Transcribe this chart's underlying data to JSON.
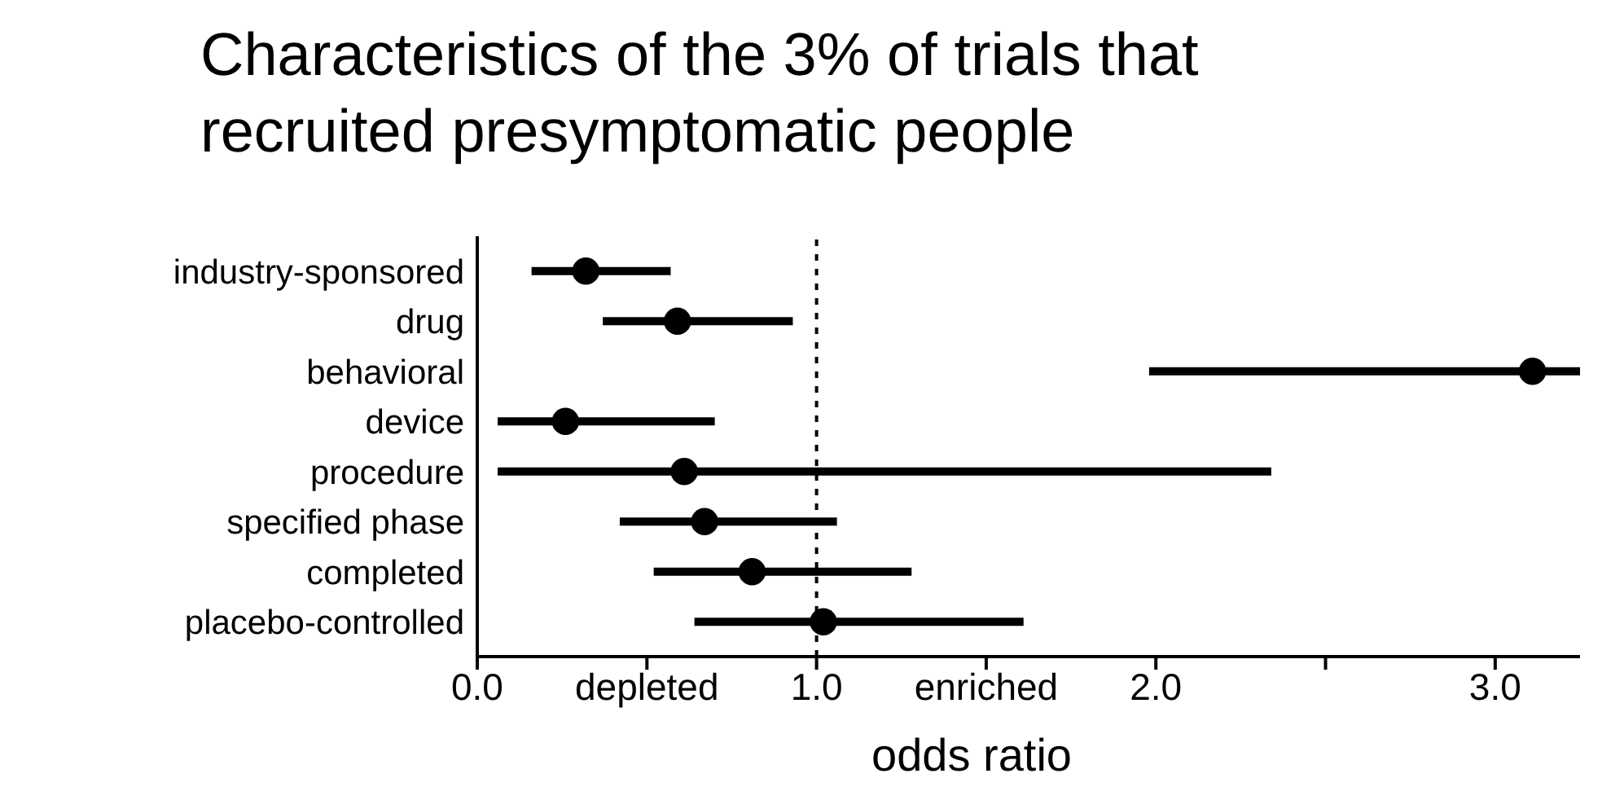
{
  "chart_data": {
    "type": "scatter",
    "orientation": "horizontal",
    "title": "Characteristics  of the 3% of trials that recruited presymptomatic people",
    "xlabel": "odds ratio",
    "categories": [
      "industry-sponsored",
      "drug",
      "behavioral",
      "device",
      "procedure",
      "specified phase",
      "completed",
      "placebo-controlled"
    ],
    "values": [
      0.32,
      0.59,
      3.11,
      0.26,
      0.61,
      0.67,
      0.81,
      1.02
    ],
    "errors": [
      [
        0.16,
        0.57
      ],
      [
        0.37,
        0.93
      ],
      [
        1.98,
        3.25
      ],
      [
        0.06,
        0.7
      ],
      [
        0.06,
        2.34
      ],
      [
        0.42,
        1.06
      ],
      [
        0.52,
        1.28
      ],
      [
        0.64,
        1.61
      ]
    ],
    "color": "#000000",
    "marker": "circle",
    "xlim": [
      0,
      3.25
    ],
    "xticks": [
      {
        "value": 0,
        "label": "0.0"
      },
      {
        "value": 0.5,
        "label": "depleted"
      },
      {
        "value": 1,
        "label": "1.0"
      },
      {
        "value": 1.5,
        "label": "enriched"
      },
      {
        "value": 2,
        "label": "2.0"
      },
      {
        "value": 2.5,
        "label": null
      },
      {
        "value": 3,
        "label": "3.0"
      }
    ],
    "ref_lines": [
      {
        "axis": "x",
        "value": 1,
        "label": null,
        "line_style": "dashed",
        "color": "#000000"
      }
    ]
  }
}
